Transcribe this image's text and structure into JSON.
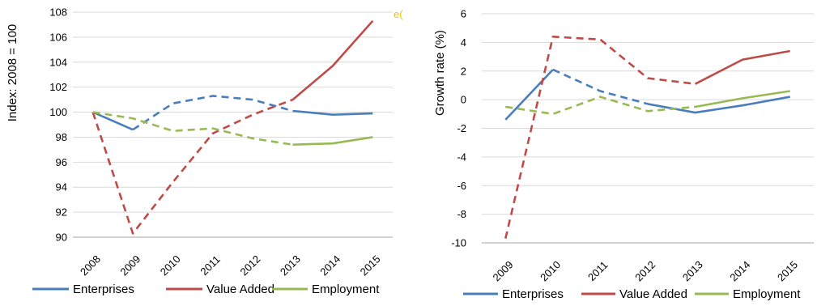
{
  "artifact_text": "e(",
  "chart_data": [
    {
      "type": "line",
      "title": "",
      "ylabel": "Index: 2008 = 100",
      "xlabel": "",
      "ylim": [
        90,
        108
      ],
      "yticks": [
        90,
        92,
        94,
        96,
        98,
        100,
        102,
        104,
        106,
        108
      ],
      "categories": [
        "2008",
        "2009",
        "2010",
        "2011",
        "2012",
        "2013",
        "2014",
        "2015"
      ],
      "dashed_through_category": "2013",
      "grid": true,
      "legend_position": "bottom",
      "series": [
        {
          "name": "Enterprises",
          "color": "#4a7ebb",
          "values": [
            100,
            98.6,
            100.7,
            101.3,
            101.0,
            100.1,
            99.8,
            99.9
          ]
        },
        {
          "name": "Value Added",
          "color": "#be4b48",
          "values": [
            100,
            90.3,
            94.4,
            98.3,
            99.8,
            101.0,
            103.7,
            107.3
          ]
        },
        {
          "name": "Employment",
          "color": "#98b954",
          "values": [
            100,
            99.5,
            98.5,
            98.7,
            97.9,
            97.4,
            97.5,
            98.0
          ]
        }
      ]
    },
    {
      "type": "line",
      "title": "",
      "ylabel": "Growth rate (%)",
      "xlabel": "",
      "ylim": [
        -10,
        6
      ],
      "yticks": [
        -10,
        -8,
        -6,
        -4,
        -2,
        0,
        2,
        4,
        6
      ],
      "categories": [
        "2009",
        "2010",
        "2011",
        "2012",
        "2013",
        "2014",
        "2015"
      ],
      "dashed_segments": {
        "Enterprises": [
          1,
          3
        ],
        "Value Added": [
          0,
          4
        ],
        "Employment": [
          0,
          4
        ]
      },
      "grid": true,
      "legend_position": "bottom",
      "series": [
        {
          "name": "Enterprises",
          "color": "#4a7ebb",
          "values": [
            -1.4,
            2.1,
            0.6,
            -0.3,
            -0.9,
            -0.4,
            0.2
          ]
        },
        {
          "name": "Value Added",
          "color": "#be4b48",
          "values": [
            -9.7,
            4.4,
            4.2,
            1.5,
            1.1,
            2.8,
            3.4
          ]
        },
        {
          "name": "Employment",
          "color": "#98b954",
          "values": [
            -0.5,
            -1.0,
            0.2,
            -0.8,
            -0.5,
            0.1,
            0.6
          ]
        }
      ]
    }
  ]
}
